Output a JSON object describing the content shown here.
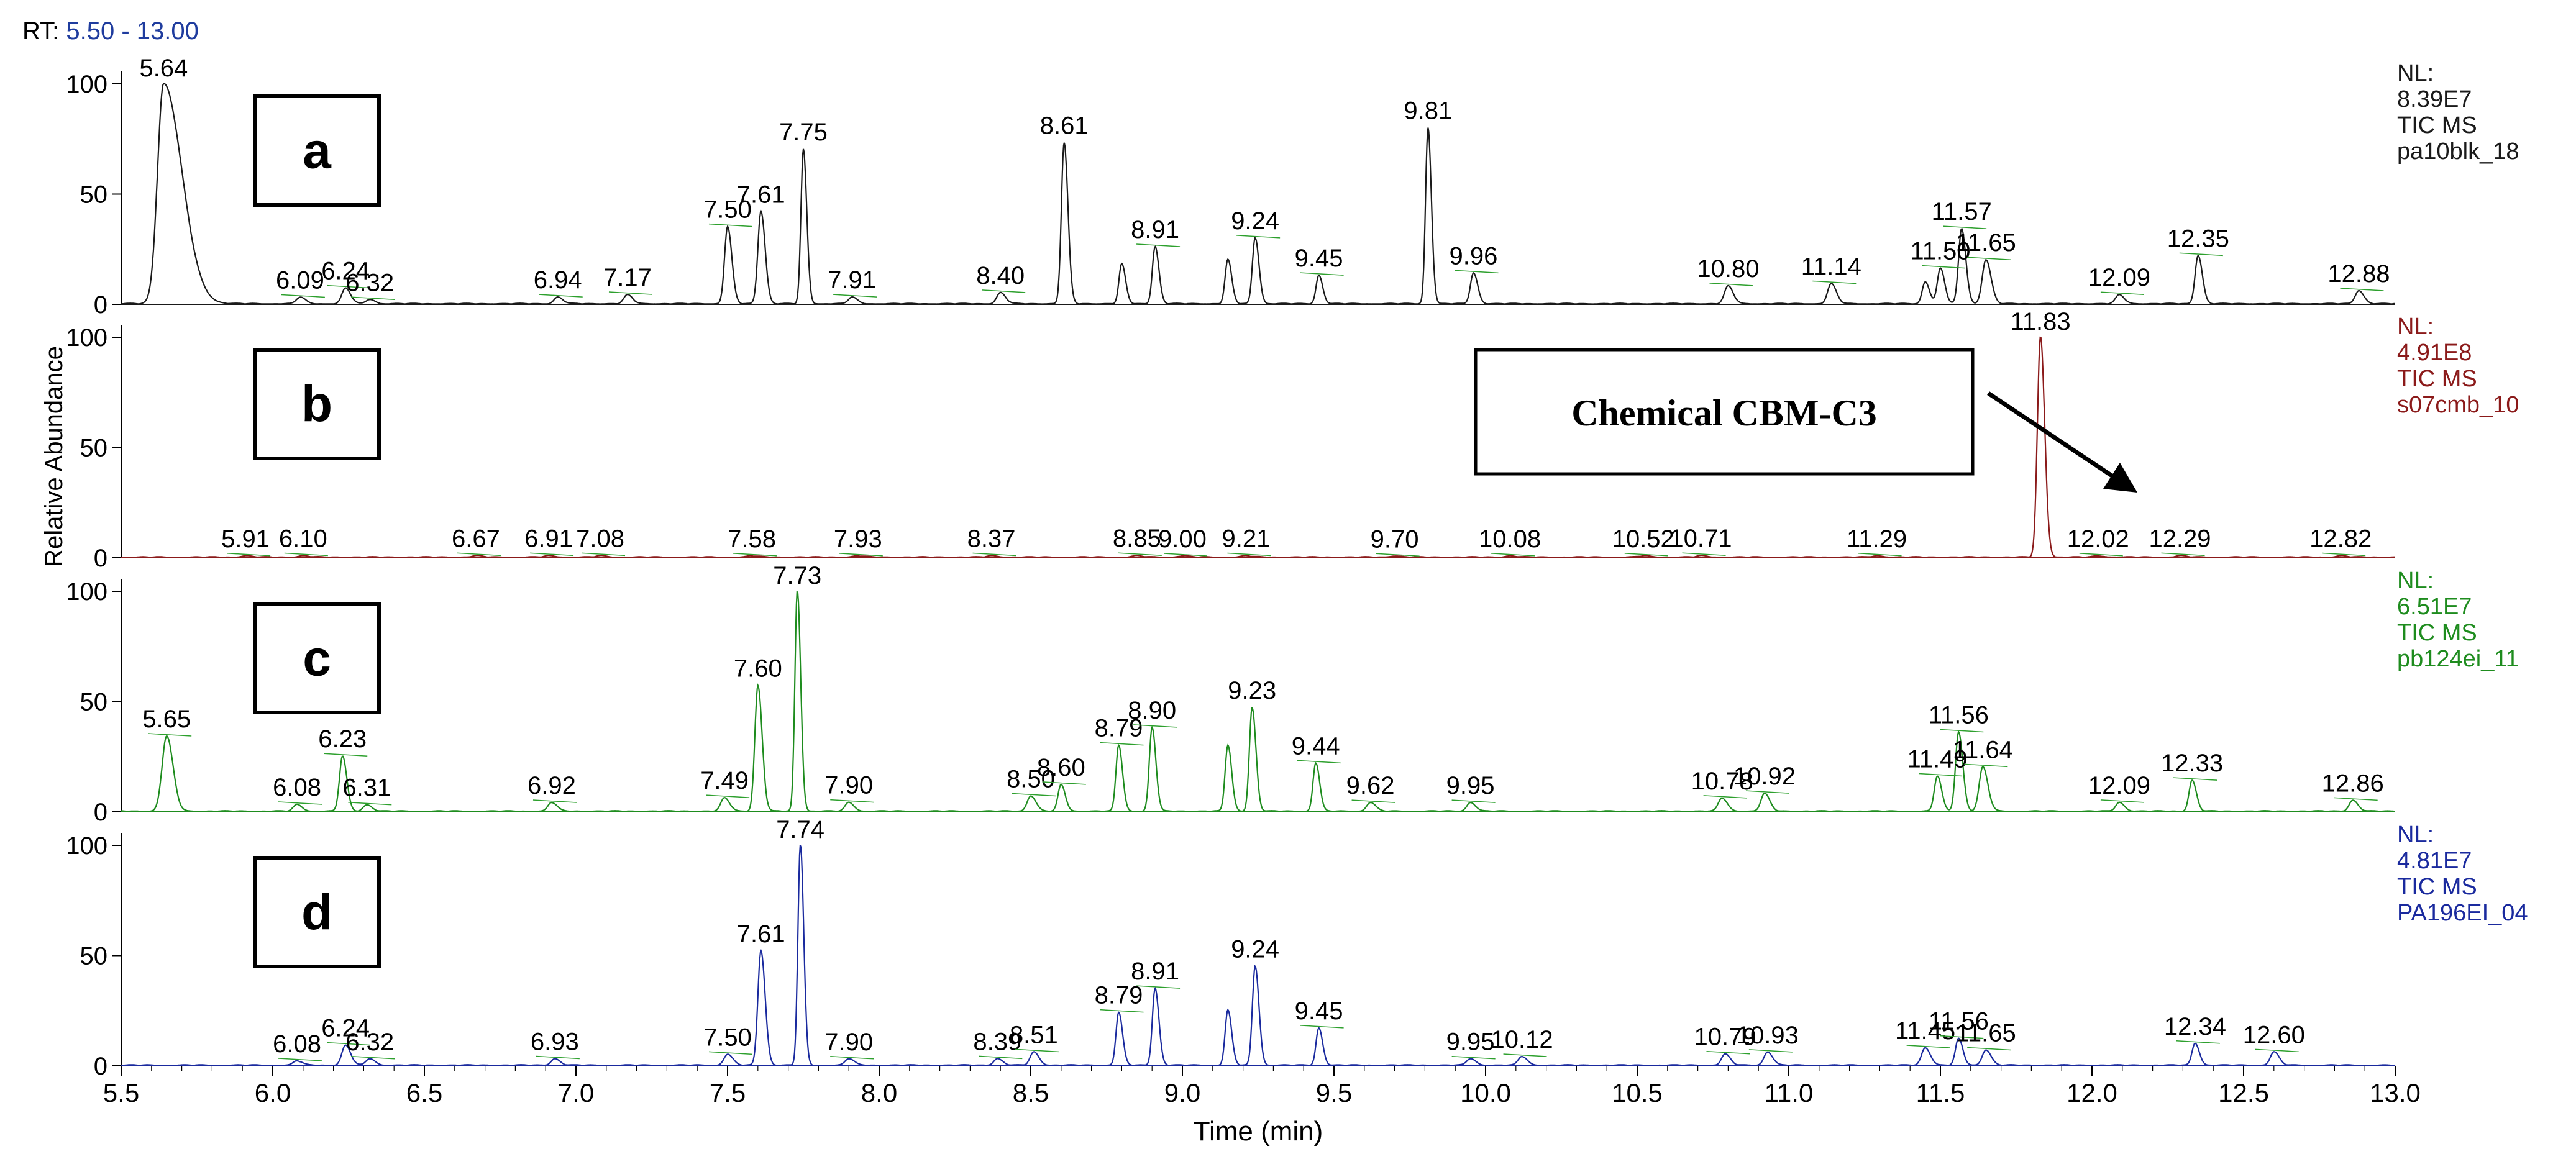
{
  "header": {
    "rt_prefix": "RT:",
    "rt_range": "5.50 - 13.00"
  },
  "colors": {
    "a": "#1a1a1a",
    "b": "#8b1a1a",
    "c": "#1e8c1e",
    "d": "#1a2a9e",
    "annotation_green": "#2ea02e"
  },
  "chart_data": {
    "type": "line",
    "title": "",
    "xlabel": "Time (min)",
    "ylabel": "Relative Abundance",
    "xlim": [
      5.5,
      13.0
    ],
    "x_ticks": [
      "5.5",
      "6.0",
      "6.5",
      "7.0",
      "7.5",
      "8.0",
      "8.5",
      "9.0",
      "9.5",
      "10.0",
      "10.5",
      "11.0",
      "11.5",
      "12.0",
      "12.5",
      "13.0"
    ],
    "y_ticks": [
      "0",
      "50",
      "100"
    ],
    "ylim": [
      0,
      100
    ],
    "panels": [
      {
        "id": "a",
        "letter": "a",
        "color": "#1a1a1a",
        "nl_label": "NL:",
        "nl_value": "8.39E7",
        "scan": "TIC MS",
        "file": "pa10blk_18",
        "annotation": "",
        "peaks": [
          {
            "rt": 5.64,
            "height": 100,
            "width": 0.02,
            "tail": 3.0,
            "label": "5.64"
          },
          {
            "rt": 6.09,
            "height": 3,
            "width": 0.012,
            "label": "6.09"
          },
          {
            "rt": 6.24,
            "height": 7,
            "width": 0.012,
            "label": "6.24"
          },
          {
            "rt": 6.32,
            "height": 2,
            "width": 0.012,
            "label": "6.32"
          },
          {
            "rt": 6.94,
            "height": 3,
            "width": 0.012,
            "label": "6.94"
          },
          {
            "rt": 7.17,
            "height": 4,
            "width": 0.012,
            "label": "7.17"
          },
          {
            "rt": 7.5,
            "height": 35,
            "width": 0.01,
            "label": "7.50"
          },
          {
            "rt": 7.61,
            "height": 42,
            "width": 0.01,
            "label": "7.61"
          },
          {
            "rt": 7.75,
            "height": 70,
            "width": 0.008,
            "label": "7.75"
          },
          {
            "rt": 7.91,
            "height": 3,
            "width": 0.012,
            "label": "7.91"
          },
          {
            "rt": 8.4,
            "height": 5,
            "width": 0.012,
            "label": "8.40"
          },
          {
            "rt": 8.61,
            "height": 73,
            "width": 0.009,
            "label": "8.61"
          },
          {
            "rt": 8.8,
            "height": 18,
            "width": 0.009,
            "label": ""
          },
          {
            "rt": 8.91,
            "height": 26,
            "width": 0.009,
            "label": "8.91"
          },
          {
            "rt": 9.15,
            "height": 20,
            "width": 0.009,
            "label": ""
          },
          {
            "rt": 9.24,
            "height": 30,
            "width": 0.009,
            "label": "9.24"
          },
          {
            "rt": 9.45,
            "height": 13,
            "width": 0.009,
            "label": "9.45"
          },
          {
            "rt": 9.81,
            "height": 80,
            "width": 0.008,
            "label": "9.81"
          },
          {
            "rt": 9.96,
            "height": 14,
            "width": 0.01,
            "label": "9.96"
          },
          {
            "rt": 10.8,
            "height": 8,
            "width": 0.012,
            "label": "10.80"
          },
          {
            "rt": 11.14,
            "height": 9,
            "width": 0.012,
            "label": "11.14"
          },
          {
            "rt": 11.45,
            "height": 10,
            "width": 0.01,
            "label": ""
          },
          {
            "rt": 11.5,
            "height": 16,
            "width": 0.01,
            "label": "11.50"
          },
          {
            "rt": 11.57,
            "height": 34,
            "width": 0.01,
            "label": "11.57"
          },
          {
            "rt": 11.65,
            "height": 20,
            "width": 0.012,
            "label": "11.65"
          },
          {
            "rt": 12.09,
            "height": 4,
            "width": 0.012,
            "label": "12.09"
          },
          {
            "rt": 12.35,
            "height": 22,
            "width": 0.01,
            "label": "12.35"
          },
          {
            "rt": 12.88,
            "height": 6,
            "width": 0.012,
            "label": "12.88"
          }
        ]
      },
      {
        "id": "b",
        "letter": "b",
        "color": "#8b1a1a",
        "nl_label": "NL:",
        "nl_value": "4.91E8",
        "scan": "TIC MS",
        "file": "s07cmb_10",
        "annotation": "Chemical CBM-C3",
        "peaks": [
          {
            "rt": 5.91,
            "height": 0.6,
            "width": 0.015,
            "label": "5.91"
          },
          {
            "rt": 6.1,
            "height": 0.6,
            "width": 0.015,
            "label": "6.10"
          },
          {
            "rt": 6.67,
            "height": 0.6,
            "width": 0.015,
            "label": "6.67"
          },
          {
            "rt": 6.91,
            "height": 0.6,
            "width": 0.015,
            "label": "6.91"
          },
          {
            "rt": 7.08,
            "height": 0.6,
            "width": 0.015,
            "label": "7.08"
          },
          {
            "rt": 7.58,
            "height": 0.6,
            "width": 0.015,
            "label": "7.58"
          },
          {
            "rt": 7.93,
            "height": 0.6,
            "width": 0.015,
            "label": "7.93"
          },
          {
            "rt": 8.37,
            "height": 0.6,
            "width": 0.015,
            "label": "8.37"
          },
          {
            "rt": 8.85,
            "height": 0.6,
            "width": 0.015,
            "label": "8.85"
          },
          {
            "rt": 9.0,
            "height": 0.6,
            "width": 0.015,
            "label": "9.00"
          },
          {
            "rt": 9.21,
            "height": 0.6,
            "width": 0.015,
            "label": "9.21"
          },
          {
            "rt": 9.7,
            "height": 0.6,
            "width": 0.015,
            "label": "9.70"
          },
          {
            "rt": 10.08,
            "height": 0.6,
            "width": 0.015,
            "label": "10.08"
          },
          {
            "rt": 10.52,
            "height": 0.6,
            "width": 0.015,
            "label": "10.52"
          },
          {
            "rt": 10.71,
            "height": 0.6,
            "width": 0.015,
            "label": "10.71"
          },
          {
            "rt": 11.29,
            "height": 0.6,
            "width": 0.015,
            "label": "11.29"
          },
          {
            "rt": 11.83,
            "height": 100,
            "width": 0.01,
            "label": "11.83"
          },
          {
            "rt": 12.02,
            "height": 0.6,
            "width": 0.015,
            "label": "12.02"
          },
          {
            "rt": 12.29,
            "height": 0.6,
            "width": 0.015,
            "label": "12.29"
          },
          {
            "rt": 12.82,
            "height": 0.6,
            "width": 0.015,
            "label": "12.82"
          }
        ]
      },
      {
        "id": "c",
        "letter": "c",
        "color": "#1e8c1e",
        "nl_label": "NL:",
        "nl_value": "6.51E7",
        "scan": "TIC MS",
        "file": "pb124ei_11",
        "annotation": "",
        "peaks": [
          {
            "rt": 5.65,
            "height": 34,
            "width": 0.015,
            "label": "5.65"
          },
          {
            "rt": 6.08,
            "height": 3,
            "width": 0.012,
            "label": "6.08"
          },
          {
            "rt": 6.23,
            "height": 25,
            "width": 0.01,
            "label": "6.23"
          },
          {
            "rt": 6.31,
            "height": 3,
            "width": 0.012,
            "label": "6.31"
          },
          {
            "rt": 6.92,
            "height": 4,
            "width": 0.012,
            "label": "6.92"
          },
          {
            "rt": 7.49,
            "height": 6,
            "width": 0.012,
            "label": "7.49"
          },
          {
            "rt": 7.6,
            "height": 57,
            "width": 0.01,
            "label": "7.60"
          },
          {
            "rt": 7.73,
            "height": 100,
            "width": 0.008,
            "label": "7.73"
          },
          {
            "rt": 7.9,
            "height": 4,
            "width": 0.012,
            "label": "7.90"
          },
          {
            "rt": 8.5,
            "height": 7,
            "width": 0.012,
            "label": "8.50"
          },
          {
            "rt": 8.6,
            "height": 12,
            "width": 0.01,
            "label": "8.60"
          },
          {
            "rt": 8.79,
            "height": 30,
            "width": 0.009,
            "label": "8.79"
          },
          {
            "rt": 8.9,
            "height": 38,
            "width": 0.009,
            "label": "8.90"
          },
          {
            "rt": 9.15,
            "height": 30,
            "width": 0.009,
            "label": ""
          },
          {
            "rt": 9.23,
            "height": 47,
            "width": 0.009,
            "label": "9.23"
          },
          {
            "rt": 9.44,
            "height": 22,
            "width": 0.009,
            "label": "9.44"
          },
          {
            "rt": 9.62,
            "height": 4,
            "width": 0.012,
            "label": "9.62"
          },
          {
            "rt": 9.95,
            "height": 4,
            "width": 0.012,
            "label": "9.95"
          },
          {
            "rt": 10.78,
            "height": 6,
            "width": 0.012,
            "label": "10.78"
          },
          {
            "rt": 10.92,
            "height": 8,
            "width": 0.012,
            "label": "10.92"
          },
          {
            "rt": 11.49,
            "height": 16,
            "width": 0.01,
            "label": "11.49"
          },
          {
            "rt": 11.56,
            "height": 36,
            "width": 0.01,
            "label": "11.56"
          },
          {
            "rt": 11.64,
            "height": 20,
            "width": 0.012,
            "label": "11.64"
          },
          {
            "rt": 12.09,
            "height": 4,
            "width": 0.012,
            "label": "12.09"
          },
          {
            "rt": 12.33,
            "height": 14,
            "width": 0.01,
            "label": "12.33"
          },
          {
            "rt": 12.86,
            "height": 5,
            "width": 0.012,
            "label": "12.86"
          }
        ]
      },
      {
        "id": "d",
        "letter": "d",
        "color": "#1a2a9e",
        "nl_label": "NL:",
        "nl_value": "4.81E7",
        "scan": "TIC MS",
        "file": "PA196EI_04",
        "annotation": "",
        "peaks": [
          {
            "rt": 6.08,
            "height": 2,
            "width": 0.012,
            "label": "6.08"
          },
          {
            "rt": 6.24,
            "height": 9,
            "width": 0.012,
            "label": "6.24"
          },
          {
            "rt": 6.32,
            "height": 3,
            "width": 0.012,
            "label": "6.32"
          },
          {
            "rt": 6.93,
            "height": 3,
            "width": 0.012,
            "label": "6.93"
          },
          {
            "rt": 7.5,
            "height": 5,
            "width": 0.012,
            "label": "7.50"
          },
          {
            "rt": 7.61,
            "height": 52,
            "width": 0.01,
            "label": "7.61"
          },
          {
            "rt": 7.74,
            "height": 100,
            "width": 0.008,
            "label": "7.74"
          },
          {
            "rt": 7.9,
            "height": 3,
            "width": 0.012,
            "label": "7.90"
          },
          {
            "rt": 8.39,
            "height": 3,
            "width": 0.012,
            "label": "8.39"
          },
          {
            "rt": 8.51,
            "height": 6,
            "width": 0.012,
            "label": "8.51"
          },
          {
            "rt": 8.79,
            "height": 24,
            "width": 0.009,
            "label": "8.79"
          },
          {
            "rt": 8.91,
            "height": 35,
            "width": 0.009,
            "label": "8.91"
          },
          {
            "rt": 9.15,
            "height": 25,
            "width": 0.009,
            "label": ""
          },
          {
            "rt": 9.24,
            "height": 45,
            "width": 0.009,
            "label": "9.24"
          },
          {
            "rt": 9.45,
            "height": 17,
            "width": 0.009,
            "label": "9.45"
          },
          {
            "rt": 9.95,
            "height": 3,
            "width": 0.012,
            "label": "9.95"
          },
          {
            "rt": 10.12,
            "height": 4,
            "width": 0.012,
            "label": "10.12"
          },
          {
            "rt": 10.79,
            "height": 5,
            "width": 0.012,
            "label": "10.79"
          },
          {
            "rt": 10.93,
            "height": 6,
            "width": 0.012,
            "label": "10.93"
          },
          {
            "rt": 11.45,
            "height": 8,
            "width": 0.012,
            "label": "11.45"
          },
          {
            "rt": 11.56,
            "height": 12,
            "width": 0.01,
            "label": "11.56"
          },
          {
            "rt": 11.65,
            "height": 7,
            "width": 0.012,
            "label": "11.65"
          },
          {
            "rt": 12.34,
            "height": 10,
            "width": 0.01,
            "label": "12.34"
          },
          {
            "rt": 12.6,
            "height": 6,
            "width": 0.012,
            "label": "12.60"
          }
        ]
      }
    ]
  }
}
